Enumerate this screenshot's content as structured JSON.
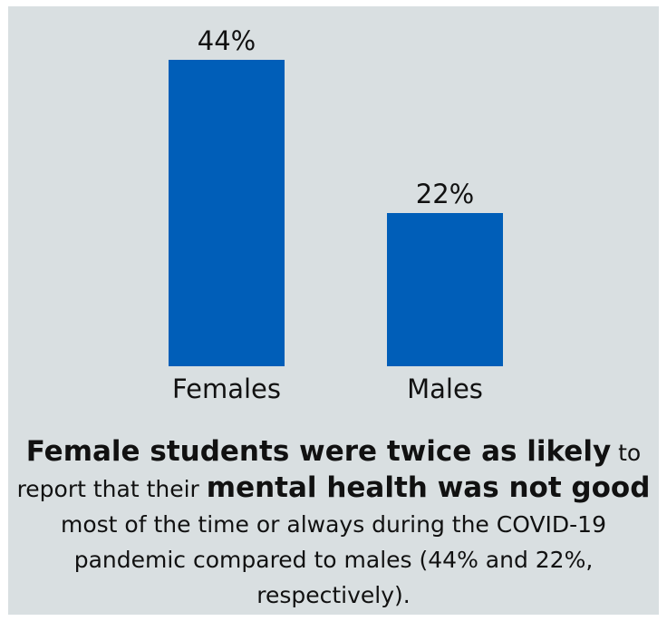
{
  "colors": {
    "panel_bg": "#d9dfe1",
    "bar": "#005eb8",
    "text": "#111111"
  },
  "chart_data": {
    "type": "bar",
    "categories": [
      "Females",
      "Males"
    ],
    "values": [
      44,
      22
    ],
    "data_labels": [
      "44%",
      "22%"
    ],
    "unit": "%",
    "title": "",
    "xlabel": "",
    "ylabel": "",
    "ylim": [
      0,
      44
    ],
    "grid": false,
    "legend": "none"
  },
  "caption": {
    "part1_bold": "Female students were twice as likely",
    "part2": " to report that their ",
    "part3_bold": "mental health was not good",
    "part4": " most of the time or always during the COVID-19 pandemic compared to males (44% and 22%, respectively)."
  }
}
